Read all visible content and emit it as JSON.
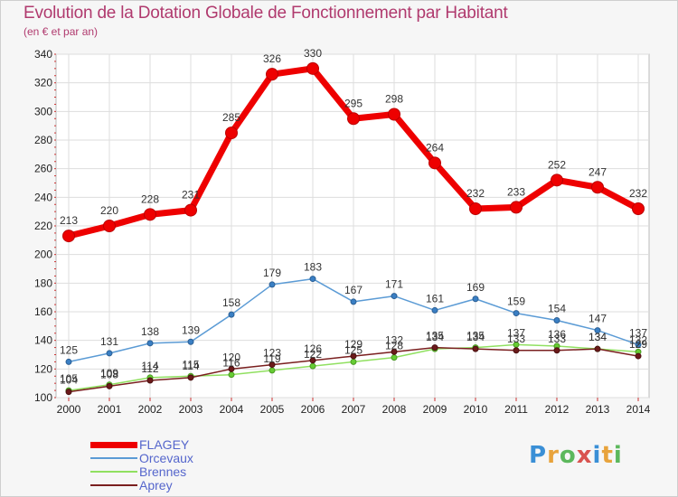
{
  "title": "Evolution de la Dotation Globale de Fonctionnement par Habitant",
  "subtitle": "(en € et par an)",
  "logo": {
    "text": "Proxiti",
    "colors": [
      "#3a8fd6",
      "#e8a33c",
      "#5cb85c",
      "#d9534f",
      "#3a8fd6",
      "#e8a33c",
      "#5cb85c"
    ]
  },
  "chart_data": {
    "type": "line",
    "title": "Evolution de la Dotation Globale de Fonctionnement par Habitant",
    "subtitle": "(en € et par an)",
    "xlabel": "",
    "ylabel": "",
    "x": [
      "2000",
      "2001",
      "2002",
      "2003",
      "2004",
      "2005",
      "2006",
      "2007",
      "2008",
      "2009",
      "2010",
      "2011",
      "2012",
      "2013",
      "2014"
    ],
    "ylim": [
      100,
      340
    ],
    "yticks": [
      100,
      120,
      140,
      160,
      180,
      200,
      220,
      240,
      260,
      280,
      300,
      320,
      340
    ],
    "grid": true,
    "legend_position": "bottom-left",
    "series": [
      {
        "name": "FLAGEY",
        "color": "#ee0000",
        "values": [
          213,
          220,
          228,
          231,
          285,
          326,
          330,
          295,
          298,
          264,
          232,
          233,
          252,
          247,
          232
        ]
      },
      {
        "name": "Orcevaux",
        "color": "#5b9bd5",
        "values": [
          125,
          131,
          138,
          139,
          158,
          179,
          183,
          167,
          171,
          161,
          169,
          159,
          154,
          147,
          137
        ]
      },
      {
        "name": "Brennes",
        "color": "#90e060",
        "values": [
          105,
          109,
          114,
          115,
          116,
          119,
          122,
          125,
          128,
          134,
          135,
          137,
          136,
          134,
          132
        ]
      },
      {
        "name": "Aprey",
        "color": "#7a1f1f",
        "values": [
          104,
          108,
          112,
          114,
          120,
          123,
          126,
          129,
          132,
          135,
          134,
          133,
          133,
          134,
          129
        ]
      }
    ]
  }
}
